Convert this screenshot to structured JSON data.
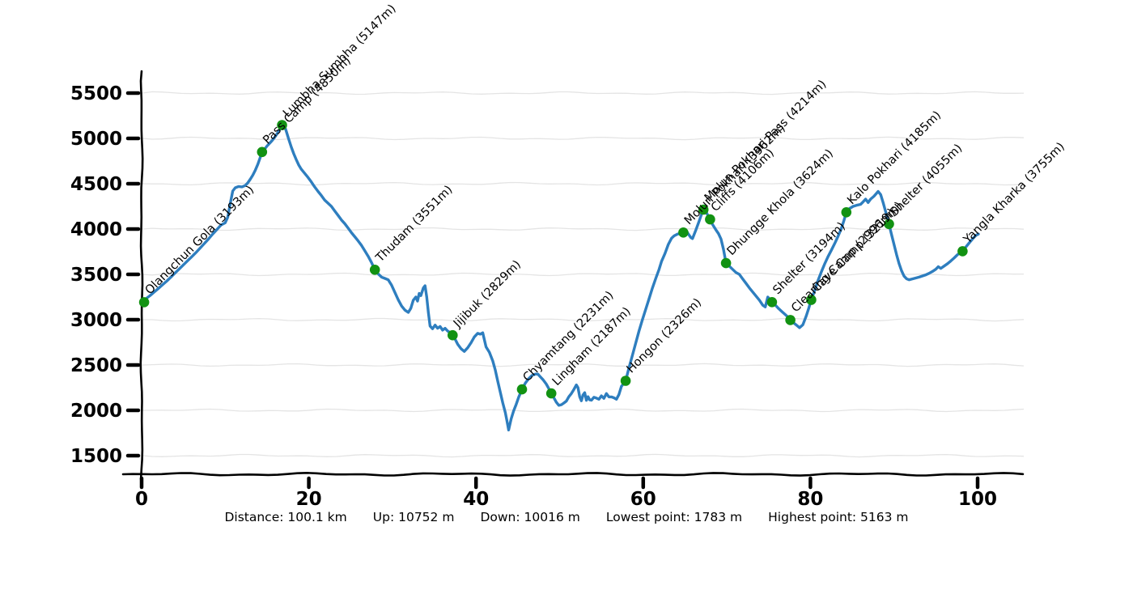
{
  "chart_data": {
    "type": "line",
    "title": "",
    "xlabel": "",
    "ylabel": "",
    "x_unit": "km",
    "y_unit": "m",
    "xlim": [
      0,
      105.5
    ],
    "ylim": [
      1300,
      5700
    ],
    "x_ticks": [
      0,
      20,
      40,
      60,
      80,
      100
    ],
    "y_ticks": [
      1500,
      2000,
      2500,
      3000,
      3500,
      4000,
      4500,
      5000,
      5500
    ],
    "grid": true,
    "style": "hand-drawn (xkcd-like) wavy axes and gridlines",
    "line_color": "#2e7ebf",
    "marker_color": "#129212",
    "axis_color": "#000000",
    "grid_color": "#e4e4e4",
    "profile": [
      [
        0,
        3193
      ],
      [
        0.5,
        3230
      ],
      [
        1,
        3265
      ],
      [
        1.5,
        3305
      ],
      [
        2,
        3345
      ],
      [
        2.5,
        3385
      ],
      [
        3,
        3425
      ],
      [
        3.5,
        3470
      ],
      [
        4,
        3515
      ],
      [
        4.5,
        3560
      ],
      [
        5,
        3605
      ],
      [
        5.5,
        3650
      ],
      [
        6,
        3695
      ],
      [
        6.5,
        3740
      ],
      [
        7,
        3790
      ],
      [
        7.5,
        3840
      ],
      [
        8,
        3890
      ],
      [
        8.5,
        3945
      ],
      [
        9,
        3995
      ],
      [
        9.5,
        4045
      ],
      [
        10,
        4070
      ],
      [
        10.3,
        4130
      ],
      [
        10.6,
        4280
      ],
      [
        10.9,
        4420
      ],
      [
        11.2,
        4455
      ],
      [
        11.6,
        4470
      ],
      [
        12,
        4465
      ],
      [
        12.4,
        4480
      ],
      [
        12.7,
        4510
      ],
      [
        13,
        4550
      ],
      [
        13.3,
        4595
      ],
      [
        13.6,
        4650
      ],
      [
        13.9,
        4715
      ],
      [
        14.15,
        4780
      ],
      [
        14.4,
        4850
      ],
      [
        14.7,
        4880
      ],
      [
        15,
        4915
      ],
      [
        15.3,
        4945
      ],
      [
        15.6,
        4975
      ],
      [
        15.9,
        5010
      ],
      [
        16.2,
        5050
      ],
      [
        16.5,
        5095
      ],
      [
        16.8,
        5147
      ],
      [
        17,
        5163
      ],
      [
        17.3,
        5080
      ],
      [
        17.6,
        4990
      ],
      [
        17.9,
        4905
      ],
      [
        18.2,
        4830
      ],
      [
        18.5,
        4765
      ],
      [
        18.8,
        4705
      ],
      [
        19.1,
        4660
      ],
      [
        19.5,
        4615
      ],
      [
        19.9,
        4570
      ],
      [
        20.3,
        4520
      ],
      [
        20.7,
        4465
      ],
      [
        21.1,
        4415
      ],
      [
        21.5,
        4370
      ],
      [
        21.9,
        4320
      ],
      [
        22.3,
        4285
      ],
      [
        22.7,
        4250
      ],
      [
        23.1,
        4200
      ],
      [
        23.5,
        4150
      ],
      [
        23.9,
        4100
      ],
      [
        24.3,
        4060
      ],
      [
        24.7,
        4010
      ],
      [
        25.1,
        3960
      ],
      [
        25.5,
        3915
      ],
      [
        25.9,
        3870
      ],
      [
        26.3,
        3820
      ],
      [
        26.7,
        3760
      ],
      [
        27.1,
        3700
      ],
      [
        27.5,
        3630
      ],
      [
        27.9,
        3551
      ],
      [
        28.3,
        3505
      ],
      [
        28.7,
        3470
      ],
      [
        29.1,
        3455
      ],
      [
        29.5,
        3440
      ],
      [
        29.9,
        3380
      ],
      [
        30.3,
        3300
      ],
      [
        30.7,
        3220
      ],
      [
        31.1,
        3150
      ],
      [
        31.5,
        3105
      ],
      [
        31.9,
        3080
      ],
      [
        32.2,
        3125
      ],
      [
        32.5,
        3215
      ],
      [
        32.8,
        3250
      ],
      [
        33,
        3205
      ],
      [
        33.2,
        3290
      ],
      [
        33.4,
        3265
      ],
      [
        33.7,
        3350
      ],
      [
        33.9,
        3375
      ],
      [
        34.1,
        3250
      ],
      [
        34.3,
        3080
      ],
      [
        34.5,
        2930
      ],
      [
        34.8,
        2900
      ],
      [
        35.1,
        2940
      ],
      [
        35.4,
        2905
      ],
      [
        35.7,
        2925
      ],
      [
        36,
        2885
      ],
      [
        36.3,
        2905
      ],
      [
        36.6,
        2875
      ],
      [
        36.9,
        2858
      ],
      [
        37.2,
        2829
      ],
      [
        37.5,
        2785
      ],
      [
        37.8,
        2730
      ],
      [
        38.2,
        2680
      ],
      [
        38.6,
        2650
      ],
      [
        39,
        2690
      ],
      [
        39.4,
        2745
      ],
      [
        39.8,
        2810
      ],
      [
        40.2,
        2850
      ],
      [
        40.5,
        2840
      ],
      [
        40.8,
        2855
      ],
      [
        41.2,
        2700
      ],
      [
        41.6,
        2640
      ],
      [
        42,
        2545
      ],
      [
        42.3,
        2445
      ],
      [
        42.6,
        2320
      ],
      [
        42.9,
        2200
      ],
      [
        43.2,
        2080
      ],
      [
        43.5,
        1975
      ],
      [
        43.7,
        1885
      ],
      [
        43.9,
        1783
      ],
      [
        44.2,
        1905
      ],
      [
        44.5,
        1995
      ],
      [
        44.8,
        2065
      ],
      [
        45.1,
        2145
      ],
      [
        45.5,
        2231
      ],
      [
        45.9,
        2300
      ],
      [
        46.3,
        2350
      ],
      [
        46.7,
        2385
      ],
      [
        47.1,
        2400
      ],
      [
        47.4,
        2400
      ],
      [
        47.7,
        2370
      ],
      [
        48,
        2340
      ],
      [
        48.4,
        2290
      ],
      [
        48.7,
        2240
      ],
      [
        49,
        2187
      ],
      [
        49.3,
        2140
      ],
      [
        49.6,
        2090
      ],
      [
        49.9,
        2055
      ],
      [
        50.2,
        2062
      ],
      [
        50.5,
        2080
      ],
      [
        50.8,
        2102
      ],
      [
        51.1,
        2150
      ],
      [
        51.4,
        2185
      ],
      [
        51.7,
        2230
      ],
      [
        52,
        2280
      ],
      [
        52.2,
        2250
      ],
      [
        52.4,
        2150
      ],
      [
        52.6,
        2105
      ],
      [
        52.8,
        2170
      ],
      [
        53,
        2195
      ],
      [
        53.2,
        2110
      ],
      [
        53.4,
        2150
      ],
      [
        53.6,
        2115
      ],
      [
        53.8,
        2112
      ],
      [
        54.1,
        2145
      ],
      [
        54.4,
        2135
      ],
      [
        54.7,
        2122
      ],
      [
        55,
        2160
      ],
      [
        55.3,
        2132
      ],
      [
        55.6,
        2185
      ],
      [
        55.9,
        2148
      ],
      [
        56.2,
        2148
      ],
      [
        56.5,
        2138
      ],
      [
        56.8,
        2122
      ],
      [
        57.1,
        2175
      ],
      [
        57.4,
        2265
      ],
      [
        57.9,
        2326
      ],
      [
        58.3,
        2470
      ],
      [
        58.7,
        2605
      ],
      [
        59.1,
        2740
      ],
      [
        59.5,
        2875
      ],
      [
        59.9,
        3000
      ],
      [
        60.3,
        3115
      ],
      [
        60.7,
        3230
      ],
      [
        61.1,
        3350
      ],
      [
        61.5,
        3455
      ],
      [
        61.9,
        3555
      ],
      [
        62.2,
        3645
      ],
      [
        62.6,
        3730
      ],
      [
        63,
        3830
      ],
      [
        63.4,
        3900
      ],
      [
        63.7,
        3925
      ],
      [
        64.1,
        3945
      ],
      [
        64.4,
        3950
      ],
      [
        64.8,
        3962
      ],
      [
        65.1,
        3990
      ],
      [
        65.4,
        3945
      ],
      [
        65.7,
        3905
      ],
      [
        65.9,
        3895
      ],
      [
        66.3,
        3990
      ],
      [
        66.7,
        4090
      ],
      [
        67,
        4170
      ],
      [
        67.2,
        4214
      ],
      [
        67.35,
        4255
      ],
      [
        67.6,
        4175
      ],
      [
        68,
        4106
      ],
      [
        68.3,
        4050
      ],
      [
        68.7,
        3990
      ],
      [
        69,
        3950
      ],
      [
        69.3,
        3890
      ],
      [
        69.6,
        3775
      ],
      [
        69.9,
        3624
      ],
      [
        70.3,
        3590
      ],
      [
        70.7,
        3555
      ],
      [
        71.1,
        3520
      ],
      [
        71.5,
        3500
      ],
      [
        71.9,
        3450
      ],
      [
        72.3,
        3400
      ],
      [
        72.7,
        3350
      ],
      [
        73.1,
        3305
      ],
      [
        73.5,
        3260
      ],
      [
        73.9,
        3215
      ],
      [
        74.3,
        3160
      ],
      [
        74.6,
        3140
      ],
      [
        74.9,
        3250
      ],
      [
        75.1,
        3228
      ],
      [
        75.4,
        3194
      ],
      [
        75.8,
        3162
      ],
      [
        76.2,
        3122
      ],
      [
        76.6,
        3088
      ],
      [
        77,
        3055
      ],
      [
        77.3,
        3030
      ],
      [
        77.6,
        2996
      ],
      [
        78,
        2965
      ],
      [
        78.4,
        2935
      ],
      [
        78.7,
        2912
      ],
      [
        79.1,
        2945
      ],
      [
        79.5,
        3040
      ],
      [
        79.8,
        3125
      ],
      [
        80.1,
        3219
      ],
      [
        80.5,
        3320
      ],
      [
        80.9,
        3430
      ],
      [
        81.3,
        3525
      ],
      [
        81.7,
        3615
      ],
      [
        82.1,
        3695
      ],
      [
        82.5,
        3765
      ],
      [
        82.9,
        3840
      ],
      [
        83.3,
        3920
      ],
      [
        83.7,
        4005
      ],
      [
        84,
        4090
      ],
      [
        84.3,
        4185
      ],
      [
        84.7,
        4228
      ],
      [
        85.1,
        4250
      ],
      [
        85.5,
        4262
      ],
      [
        86,
        4272
      ],
      [
        86.3,
        4300
      ],
      [
        86.6,
        4330
      ],
      [
        86.9,
        4292
      ],
      [
        87.2,
        4330
      ],
      [
        87.6,
        4362
      ],
      [
        88.1,
        4415
      ],
      [
        88.4,
        4380
      ],
      [
        88.7,
        4290
      ],
      [
        89,
        4190
      ],
      [
        89.2,
        4120
      ],
      [
        89.4,
        4055
      ],
      [
        89.7,
        3940
      ],
      [
        90,
        3830
      ],
      [
        90.3,
        3720
      ],
      [
        90.6,
        3620
      ],
      [
        90.9,
        3540
      ],
      [
        91.2,
        3480
      ],
      [
        91.5,
        3452
      ],
      [
        91.8,
        3440
      ],
      [
        92.2,
        3450
      ],
      [
        92.6,
        3460
      ],
      [
        93,
        3470
      ],
      [
        93.4,
        3482
      ],
      [
        93.8,
        3495
      ],
      [
        94.2,
        3512
      ],
      [
        94.6,
        3532
      ],
      [
        95,
        3556
      ],
      [
        95.3,
        3585
      ],
      [
        95.6,
        3566
      ],
      [
        96,
        3592
      ],
      [
        96.4,
        3618
      ],
      [
        96.8,
        3648
      ],
      [
        97.2,
        3682
      ],
      [
        97.6,
        3718
      ],
      [
        98.2,
        3755
      ],
      [
        98.6,
        3802
      ],
      [
        99,
        3848
      ],
      [
        99.4,
        3892
      ],
      [
        99.8,
        3930
      ],
      [
        100.1,
        3945
      ]
    ],
    "waypoints": [
      {
        "label": "Olangchun Gola (3193m)",
        "km": 0.3,
        "elevation_m": 3193
      },
      {
        "label": "Pass Camp (4850m)",
        "km": 14.4,
        "elevation_m": 4850
      },
      {
        "label": "Lumbha Sumbha (5147m)",
        "km": 16.8,
        "elevation_m": 5147
      },
      {
        "label": "Thudam (3551m)",
        "km": 27.9,
        "elevation_m": 3551
      },
      {
        "label": "Jijibuk (2829m)",
        "km": 37.2,
        "elevation_m": 2829
      },
      {
        "label": "Chyamtang (2231m)",
        "km": 45.5,
        "elevation_m": 2231
      },
      {
        "label": "Lingham (2187m)",
        "km": 49.0,
        "elevation_m": 2187
      },
      {
        "label": "Hongon (2326m)",
        "km": 57.9,
        "elevation_m": 2326
      },
      {
        "label": "Molun Pokhari (3962m)",
        "km": 64.8,
        "elevation_m": 3962
      },
      {
        "label": "Molun Pokhari Pass (4214m)",
        "km": 67.2,
        "elevation_m": 4214
      },
      {
        "label": "Cliffs (4106m)",
        "km": 68.0,
        "elevation_m": 4106
      },
      {
        "label": "Dhungge Khola (3624m)",
        "km": 69.9,
        "elevation_m": 3624
      },
      {
        "label": "Shelter (3194m)",
        "km": 75.4,
        "elevation_m": 3194
      },
      {
        "label": "Clearing Camp (2996m)",
        "km": 77.6,
        "elevation_m": 2996
      },
      {
        "label": "Cave Camp (3219m)",
        "km": 80.1,
        "elevation_m": 3219
      },
      {
        "label": "Kalo Pokhari (4185m)",
        "km": 84.3,
        "elevation_m": 4185
      },
      {
        "label": "Shelter (4055m)",
        "km": 89.4,
        "elevation_m": 4055
      },
      {
        "label": "Yangla Kharka (3755m)",
        "km": 98.2,
        "elevation_m": 3755
      }
    ],
    "stats": [
      "Distance: 100.1 km",
      "Up: 10752 m",
      "Down: 10016 m",
      "Lowest point: 1783 m",
      "Highest point: 5163 m"
    ]
  }
}
